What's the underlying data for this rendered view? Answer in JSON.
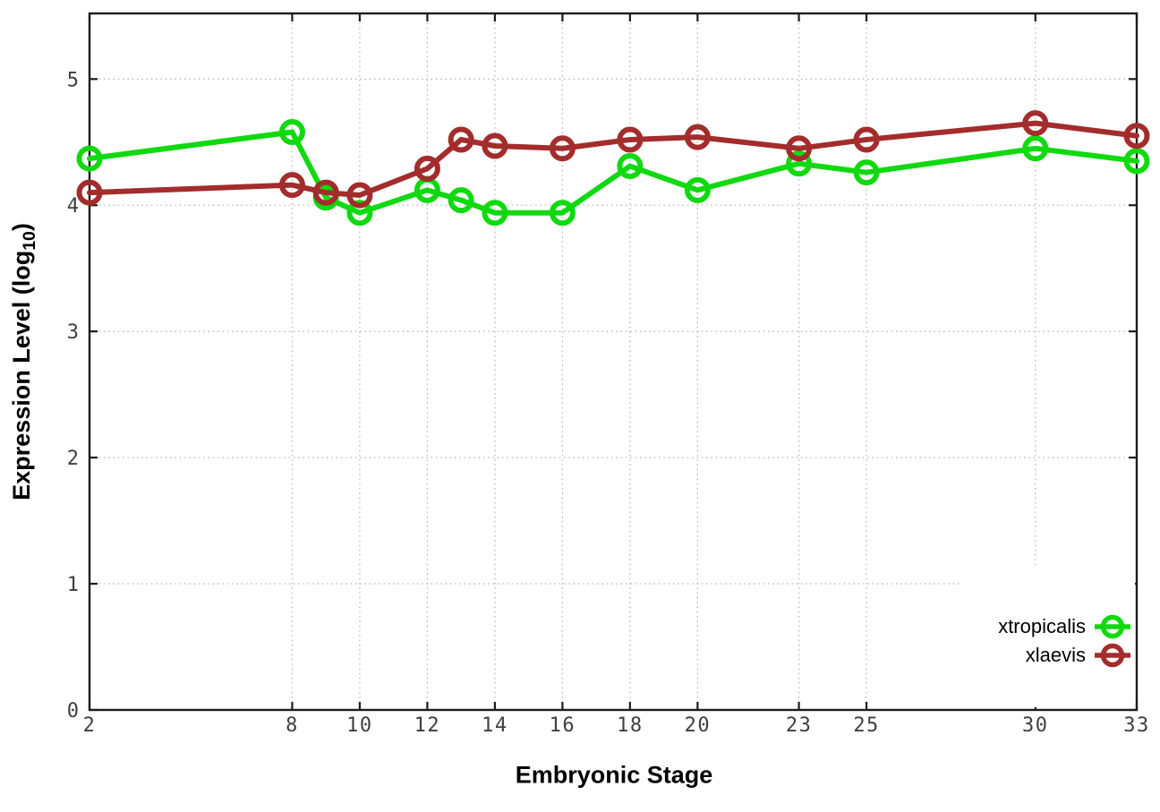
{
  "figure": {
    "xlabel": "Embryonic Stage",
    "ylabel_prefix": "Expression Level (log",
    "ylabel_sub": "10",
    "ylabel_suffix": ")",
    "background_color": "#ffffff"
  },
  "chart_data": {
    "type": "line",
    "title": "",
    "xlabel": "Embryonic Stage",
    "ylabel": "Expression Level (log10)",
    "x": [
      2,
      8,
      9,
      10,
      12,
      13,
      14,
      16,
      18,
      20,
      23,
      25,
      30,
      33
    ],
    "series": [
      {
        "name": "xtropicalis",
        "color": "#10d910",
        "marker": "open-circle",
        "values": [
          4.37,
          4.58,
          4.06,
          3.94,
          4.12,
          4.04,
          3.94,
          3.94,
          4.31,
          4.12,
          4.33,
          4.26,
          4.45,
          4.35
        ]
      },
      {
        "name": "xlaevis",
        "color": "#a32c2c",
        "marker": "open-circle",
        "values": [
          4.1,
          4.16,
          4.1,
          4.08,
          4.29,
          4.52,
          4.47,
          4.45,
          4.52,
          4.54,
          4.45,
          4.52,
          4.65,
          4.55
        ]
      }
    ],
    "x_tick_labels": [
      2,
      8,
      10,
      12,
      14,
      16,
      18,
      20,
      23,
      25,
      30,
      33
    ],
    "y_ticks": [
      0,
      1,
      2,
      3,
      4,
      5
    ],
    "xlim": [
      2,
      33
    ],
    "ylim": [
      0,
      5.52
    ],
    "grid": true,
    "grid_style": "dotted",
    "legend_position": "inside-bottom-right",
    "axis_color": "#1c1c1c",
    "grid_color": "#b5b5b5",
    "tick_label_color": "#3f3f3f"
  }
}
